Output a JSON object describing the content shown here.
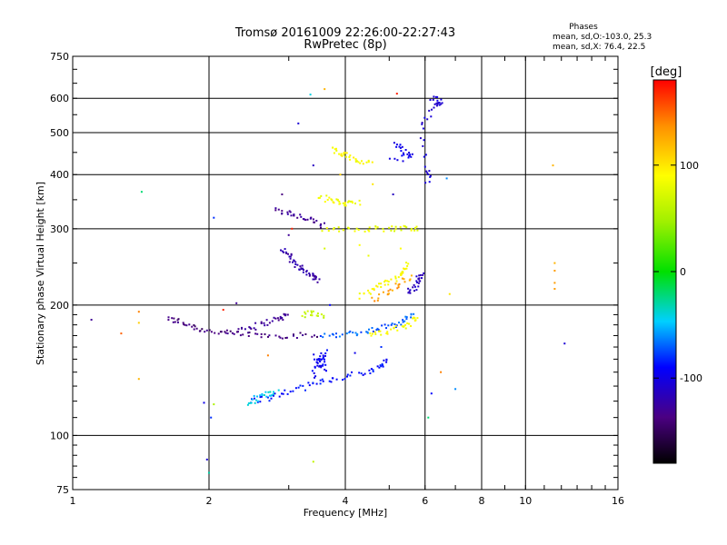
{
  "chart_data": {
    "type": "scatter",
    "title": "Tromsø 20161009 22:26:00-22:27:43",
    "subtitle": "RwPretec (8p)",
    "xlabel": "Frequency [MHz]",
    "ylabel": "Stationary phase Virtual Height [km]",
    "x_scale": "log",
    "y_scale": "log",
    "xlim": [
      1,
      16
    ],
    "ylim": [
      75,
      750
    ],
    "x_ticks": [
      1,
      2,
      4,
      6,
      8,
      10,
      16
    ],
    "x_tick_labels": [
      "1",
      "2",
      "4",
      "6",
      "8",
      "10",
      "16"
    ],
    "y_ticks": [
      75,
      100,
      200,
      300,
      400,
      500,
      600,
      750
    ],
    "y_tick_labels": [
      "75",
      "100",
      "200",
      "300",
      "400",
      "500",
      "600",
      "750"
    ],
    "grid": true,
    "phase_stats": {
      "heading": "Phases",
      "line_o": "mean, sd,O:-103.0, 25.3",
      "line_x": "mean, sd,X: 76.4, 22.5"
    },
    "colorbar": {
      "unit_label": "[deg]",
      "range": [
        -180,
        180
      ],
      "ticks": [
        100,
        0,
        -100
      ],
      "tick_labels": [
        "100",
        "0",
        "-100"
      ]
    },
    "traces": [
      {
        "phase": -150,
        "points": [
          [
            1.62,
            186
          ],
          [
            1.72,
            183
          ],
          [
            1.85,
            178
          ],
          [
            2.0,
            174
          ],
          [
            2.2,
            172
          ],
          [
            2.45,
            171
          ],
          [
            2.75,
            170
          ],
          [
            3.1,
            170
          ],
          [
            3.5,
            170
          ]
        ]
      },
      {
        "phase": -140,
        "points": [
          [
            2.3,
            176
          ],
          [
            2.5,
            178
          ],
          [
            2.7,
            183
          ],
          [
            2.9,
            187
          ],
          [
            3.0,
            190
          ]
        ]
      },
      {
        "phase": -70,
        "points": [
          [
            3.5,
            170
          ],
          [
            3.9,
            171
          ],
          [
            4.3,
            173
          ],
          [
            4.7,
            176
          ],
          [
            5.1,
            180
          ],
          [
            5.4,
            185
          ],
          [
            5.7,
            192
          ]
        ]
      },
      {
        "phase": 90,
        "points": [
          [
            4.5,
            170
          ],
          [
            4.9,
            173
          ],
          [
            5.3,
            177
          ],
          [
            5.6,
            183
          ],
          [
            5.8,
            188
          ]
        ]
      },
      {
        "phase": -90,
        "points": [
          [
            2.45,
            120
          ],
          [
            2.7,
            122
          ],
          [
            3.0,
            126
          ],
          [
            3.3,
            130
          ],
          [
            3.6,
            134
          ],
          [
            4.0,
            137
          ],
          [
            4.5,
            140
          ],
          [
            4.8,
            145
          ],
          [
            5.0,
            150
          ]
        ]
      },
      {
        "phase": -40,
        "points": [
          [
            2.45,
            118
          ],
          [
            2.55,
            122
          ],
          [
            2.7,
            125
          ],
          [
            2.85,
            126
          ]
        ]
      },
      {
        "phase": -95,
        "points": [
          [
            3.4,
            137
          ],
          [
            3.5,
            148
          ],
          [
            3.6,
            156
          ],
          [
            3.55,
            143
          ],
          [
            3.45,
            152
          ],
          [
            3.65,
            140
          ]
        ]
      },
      {
        "phase": -130,
        "points": [
          [
            2.9,
            268
          ],
          [
            3.0,
            260
          ],
          [
            3.1,
            250
          ],
          [
            3.2,
            242
          ],
          [
            3.3,
            237
          ],
          [
            3.4,
            233
          ],
          [
            3.5,
            228
          ]
        ]
      },
      {
        "phase": -140,
        "points": [
          [
            2.8,
            330
          ],
          [
            3.0,
            325
          ],
          [
            3.2,
            318
          ],
          [
            3.4,
            312
          ],
          [
            3.6,
            305
          ]
        ]
      },
      {
        "phase": 80,
        "points": [
          [
            3.6,
            300
          ],
          [
            4.0,
            300
          ],
          [
            4.5,
            300
          ],
          [
            5.0,
            300
          ],
          [
            5.5,
            301
          ],
          [
            5.8,
            302
          ]
        ]
      },
      {
        "phase": 85,
        "points": [
          [
            3.5,
            355
          ],
          [
            3.7,
            350
          ],
          [
            3.9,
            345
          ],
          [
            4.1,
            342
          ],
          [
            4.3,
            345
          ]
        ]
      },
      {
        "phase": 90,
        "points": [
          [
            4.3,
            210
          ],
          [
            4.6,
            217
          ],
          [
            4.9,
            224
          ],
          [
            5.2,
            230
          ],
          [
            5.4,
            240
          ],
          [
            5.5,
            250
          ]
        ]
      },
      {
        "phase": 130,
        "points": [
          [
            4.6,
            205
          ],
          [
            5.0,
            215
          ],
          [
            5.3,
            225
          ],
          [
            5.6,
            232
          ]
        ]
      },
      {
        "phase": -120,
        "points": [
          [
            5.5,
            215
          ],
          [
            5.7,
            220
          ],
          [
            5.8,
            230
          ],
          [
            5.9,
            235
          ]
        ]
      },
      {
        "phase": -100,
        "points": [
          [
            5.2,
            470
          ],
          [
            5.4,
            455
          ],
          [
            5.6,
            440
          ],
          [
            5.0,
            430
          ]
        ]
      },
      {
        "phase": 90,
        "points": [
          [
            3.7,
            460
          ],
          [
            3.9,
            450
          ],
          [
            4.1,
            440
          ],
          [
            4.3,
            430
          ],
          [
            4.6,
            420
          ]
        ]
      },
      {
        "phase": 60,
        "points": [
          [
            3.2,
            190
          ],
          [
            3.4,
            192
          ],
          [
            3.6,
            188
          ]
        ]
      },
      {
        "phase": -110,
        "points": [
          [
            6.2,
            600
          ],
          [
            6.5,
            590
          ],
          [
            6.3,
            580
          ],
          [
            5.9,
            520
          ],
          [
            6.1,
            410
          ],
          [
            6.1,
            380
          ]
        ]
      }
    ],
    "scattered_points": [
      {
        "x": 1.1,
        "y": 185,
        "phase": -140
      },
      {
        "x": 1.4,
        "y": 193,
        "phase": 140
      },
      {
        "x": 1.4,
        "y": 182,
        "phase": 110
      },
      {
        "x": 1.28,
        "y": 172,
        "phase": 150
      },
      {
        "x": 1.4,
        "y": 135,
        "phase": 120
      },
      {
        "x": 1.42,
        "y": 365,
        "phase": -20
      },
      {
        "x": 1.95,
        "y": 119,
        "phase": -100
      },
      {
        "x": 2.05,
        "y": 118,
        "phase": 50
      },
      {
        "x": 2.02,
        "y": 110,
        "phase": -80
      },
      {
        "x": 1.98,
        "y": 88,
        "phase": -110
      },
      {
        "x": 2.0,
        "y": 82,
        "phase": -30
      },
      {
        "x": 2.05,
        "y": 318,
        "phase": -80
      },
      {
        "x": 2.9,
        "y": 360,
        "phase": -150
      },
      {
        "x": 3.05,
        "y": 300,
        "phase": 170
      },
      {
        "x": 3.35,
        "y": 612,
        "phase": -40
      },
      {
        "x": 3.6,
        "y": 630,
        "phase": 120
      },
      {
        "x": 5.2,
        "y": 615,
        "phase": 170
      },
      {
        "x": 3.15,
        "y": 525,
        "phase": -110
      },
      {
        "x": 3.4,
        "y": 87,
        "phase": 60
      },
      {
        "x": 6.1,
        "y": 110,
        "phase": -20
      },
      {
        "x": 6.2,
        "y": 125,
        "phase": -90
      },
      {
        "x": 6.5,
        "y": 140,
        "phase": 140
      },
      {
        "x": 7.0,
        "y": 128,
        "phase": -60
      },
      {
        "x": 6.8,
        "y": 212,
        "phase": 100
      },
      {
        "x": 6.7,
        "y": 392,
        "phase": -60
      },
      {
        "x": 11.5,
        "y": 420,
        "phase": 120
      },
      {
        "x": 11.6,
        "y": 250,
        "phase": 120
      },
      {
        "x": 11.6,
        "y": 240,
        "phase": 130
      },
      {
        "x": 11.6,
        "y": 225,
        "phase": 130
      },
      {
        "x": 11.6,
        "y": 218,
        "phase": 130
      },
      {
        "x": 12.2,
        "y": 163,
        "phase": -110
      },
      {
        "x": 2.2,
        "y": 172,
        "phase": -140
      },
      {
        "x": 2.3,
        "y": 202,
        "phase": -140
      },
      {
        "x": 2.15,
        "y": 195,
        "phase": 170
      },
      {
        "x": 3.7,
        "y": 200,
        "phase": -90
      },
      {
        "x": 4.3,
        "y": 275,
        "phase": 90
      },
      {
        "x": 4.5,
        "y": 260,
        "phase": 80
      },
      {
        "x": 5.3,
        "y": 270,
        "phase": 90
      },
      {
        "x": 3.4,
        "y": 420,
        "phase": -120
      },
      {
        "x": 3.9,
        "y": 400,
        "phase": 110
      },
      {
        "x": 4.6,
        "y": 380,
        "phase": 100
      },
      {
        "x": 5.1,
        "y": 360,
        "phase": -120
      },
      {
        "x": 3.6,
        "y": 270,
        "phase": 70
      },
      {
        "x": 3.0,
        "y": 290,
        "phase": -140
      },
      {
        "x": 5.8,
        "y": 230,
        "phase": -130
      },
      {
        "x": 2.7,
        "y": 153,
        "phase": 140
      },
      {
        "x": 4.2,
        "y": 155,
        "phase": -100
      },
      {
        "x": 4.8,
        "y": 160,
        "phase": -80
      }
    ]
  }
}
